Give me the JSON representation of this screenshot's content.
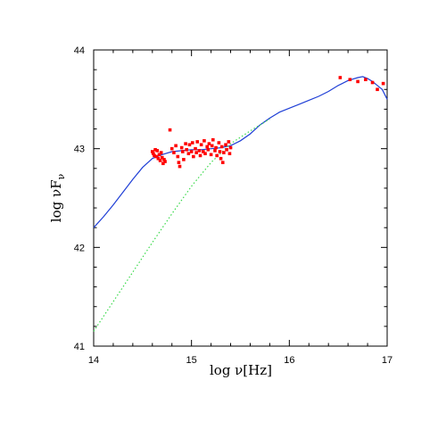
{
  "chart_data": {
    "type": "scatter",
    "title": "",
    "xlabel": "log  ν[Hz]",
    "ylabel": "log  νF",
    "ylabel_subscript": "ν",
    "xlim": [
      14,
      17
    ],
    "ylim": [
      41,
      44
    ],
    "x_ticks": [
      14,
      15,
      16,
      17
    ],
    "y_ticks": [
      41,
      42,
      43,
      44
    ],
    "grid": false,
    "legend": "none",
    "series": [
      {
        "kind": "line",
        "style": "solid",
        "color": "#1f3fd6",
        "points": [
          [
            14.0,
            42.2
          ],
          [
            14.1,
            42.31
          ],
          [
            14.2,
            42.43
          ],
          [
            14.3,
            42.56
          ],
          [
            14.4,
            42.69
          ],
          [
            14.5,
            42.81
          ],
          [
            14.6,
            42.9
          ],
          [
            14.7,
            42.94
          ],
          [
            14.8,
            42.97
          ],
          [
            14.9,
            42.98
          ],
          [
            15.0,
            42.99
          ],
          [
            15.1,
            42.99
          ],
          [
            15.2,
            43.0
          ],
          [
            15.3,
            43.01
          ],
          [
            15.4,
            43.03
          ],
          [
            15.5,
            43.08
          ],
          [
            15.6,
            43.15
          ],
          [
            15.7,
            43.24
          ],
          [
            15.8,
            43.31
          ],
          [
            15.9,
            43.37
          ],
          [
            16.0,
            43.41
          ],
          [
            16.1,
            43.45
          ],
          [
            16.2,
            43.49
          ],
          [
            16.3,
            43.53
          ],
          [
            16.4,
            43.58
          ],
          [
            16.5,
            43.64
          ],
          [
            16.6,
            43.69
          ],
          [
            16.7,
            43.72
          ],
          [
            16.75,
            43.73
          ],
          [
            16.8,
            43.71
          ],
          [
            16.85,
            43.68
          ],
          [
            16.9,
            43.64
          ],
          [
            16.95,
            43.6
          ],
          [
            17.0,
            43.5
          ]
        ]
      },
      {
        "kind": "line",
        "style": "dotted",
        "color": "#39d94a",
        "points": [
          [
            14.0,
            41.15
          ],
          [
            14.2,
            41.45
          ],
          [
            14.4,
            41.75
          ],
          [
            14.6,
            42.05
          ],
          [
            14.8,
            42.34
          ],
          [
            15.0,
            42.62
          ],
          [
            15.2,
            42.86
          ],
          [
            15.4,
            43.05
          ],
          [
            15.6,
            43.18
          ],
          [
            15.8,
            43.3
          ]
        ]
      },
      {
        "kind": "points",
        "color": "#ff0000",
        "points": [
          [
            14.6,
            42.97
          ],
          [
            14.61,
            42.95
          ],
          [
            14.62,
            42.93
          ],
          [
            14.63,
            42.99
          ],
          [
            14.64,
            42.92
          ],
          [
            14.65,
            42.98
          ],
          [
            14.66,
            42.9
          ],
          [
            14.67,
            42.94
          ],
          [
            14.68,
            42.88
          ],
          [
            14.69,
            42.96
          ],
          [
            14.7,
            42.91
          ],
          [
            14.71,
            42.85
          ],
          [
            14.72,
            42.89
          ],
          [
            14.73,
            42.87
          ],
          [
            14.78,
            43.19
          ],
          [
            14.8,
            43.0
          ],
          [
            14.82,
            42.96
          ],
          [
            14.84,
            43.03
          ],
          [
            14.86,
            42.92
          ],
          [
            14.87,
            42.86
          ],
          [
            14.88,
            42.82
          ],
          [
            14.9,
            43.01
          ],
          [
            14.91,
            42.97
          ],
          [
            14.92,
            42.89
          ],
          [
            14.94,
            43.05
          ],
          [
            14.95,
            42.99
          ],
          [
            14.97,
            42.95
          ],
          [
            14.98,
            43.04
          ],
          [
            15.0,
            42.97
          ],
          [
            15.01,
            43.06
          ],
          [
            15.02,
            42.92
          ],
          [
            15.04,
            43.0
          ],
          [
            15.05,
            42.96
          ],
          [
            15.06,
            43.07
          ],
          [
            15.08,
            42.98
          ],
          [
            15.09,
            42.93
          ],
          [
            15.1,
            43.04
          ],
          [
            15.12,
            42.97
          ],
          [
            15.13,
            43.08
          ],
          [
            15.14,
            42.95
          ],
          [
            15.16,
            43.02
          ],
          [
            15.17,
            42.99
          ],
          [
            15.18,
            43.05
          ],
          [
            15.2,
            42.94
          ],
          [
            15.21,
            43.03
          ],
          [
            15.22,
            43.09
          ],
          [
            15.24,
            42.98
          ],
          [
            15.25,
            43.01
          ],
          [
            15.26,
            42.93
          ],
          [
            15.28,
            43.06
          ],
          [
            15.29,
            42.97
          ],
          [
            15.3,
            42.9
          ],
          [
            15.31,
            43.02
          ],
          [
            15.32,
            42.86
          ],
          [
            15.33,
            42.96
          ],
          [
            15.35,
            43.04
          ],
          [
            15.36,
            42.99
          ],
          [
            15.38,
            43.07
          ],
          [
            15.39,
            42.95
          ],
          [
            15.4,
            43.01
          ],
          [
            16.52,
            43.72
          ],
          [
            16.62,
            43.7
          ],
          [
            16.7,
            43.68
          ],
          [
            16.78,
            43.7
          ],
          [
            16.85,
            43.67
          ],
          [
            16.9,
            43.6
          ],
          [
            16.96,
            43.66
          ]
        ]
      }
    ]
  }
}
